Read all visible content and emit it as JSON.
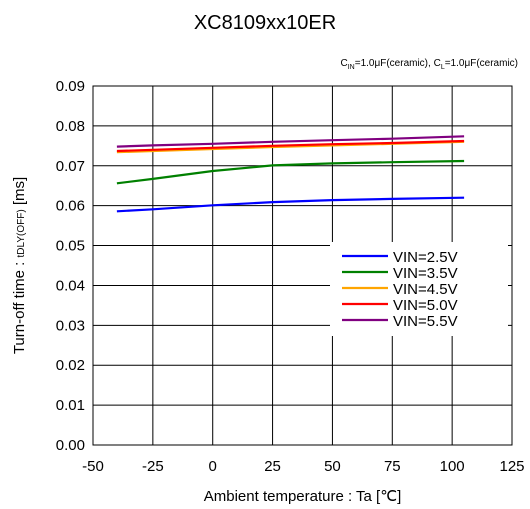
{
  "chart_data": {
    "type": "line",
    "title": "XC8109xx10ER",
    "conditions": {
      "cin_symbol": "C",
      "cin_sub": "IN",
      "cin_value": "=1.0μF(ceramic),",
      "cl_symbol": "C",
      "cl_sub": "L",
      "cl_value": "=1.0μF(ceramic)"
    },
    "xlabel": "Ambient temperature : Ta [℃]",
    "ylabel": {
      "main": "Turn-off time : ",
      "sub": "tDLY(OFF)",
      "unit": " [ms]"
    },
    "xlim": [
      -50,
      125
    ],
    "ylim": [
      0.0,
      0.09
    ],
    "x_ticks": [
      "-50",
      "-25",
      "0",
      "25",
      "50",
      "75",
      "100",
      "125"
    ],
    "y_ticks": [
      "0.00",
      "0.01",
      "0.02",
      "0.03",
      "0.04",
      "0.05",
      "0.06",
      "0.07",
      "0.08",
      "0.09"
    ],
    "grid": true,
    "legend_position": "lower-right",
    "x": [
      -40,
      -25,
      0,
      25,
      50,
      75,
      105
    ],
    "series": [
      {
        "name": "VIN=2.5V",
        "color": "#0000ff",
        "values": [
          0.0586,
          0.0591,
          0.0601,
          0.0609,
          0.0614,
          0.0617,
          0.062
        ]
      },
      {
        "name": "VIN=3.5V",
        "color": "#008000",
        "values": [
          0.0656,
          0.0667,
          0.0687,
          0.0701,
          0.0706,
          0.0709,
          0.0712
        ]
      },
      {
        "name": "VIN=4.5V",
        "color": "#ffa500",
        "values": [
          0.0734,
          0.0737,
          0.0742,
          0.0747,
          0.0751,
          0.0755,
          0.076
        ]
      },
      {
        "name": "VIN=5.0V",
        "color": "#ff0000",
        "values": [
          0.0737,
          0.074,
          0.0745,
          0.075,
          0.0754,
          0.0757,
          0.0762
        ]
      },
      {
        "name": "VIN=5.5V",
        "color": "#800080",
        "values": [
          0.0748,
          0.0751,
          0.0755,
          0.076,
          0.0764,
          0.0768,
          0.0774
        ]
      }
    ]
  }
}
